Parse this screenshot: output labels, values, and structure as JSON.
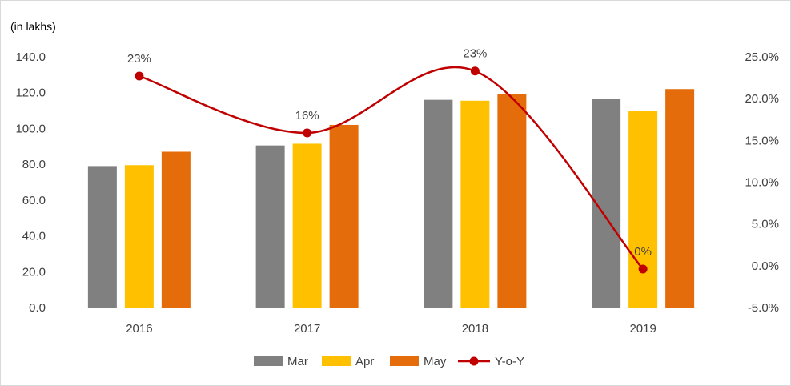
{
  "chart_data": {
    "type": "bar",
    "unit_label": "(in lakhs)",
    "categories": [
      "2016",
      "2017",
      "2018",
      "2019"
    ],
    "series": [
      {
        "name": "Mar",
        "kind": "bar",
        "axis": "left",
        "color": "#808080",
        "values": [
          79,
          90.5,
          116,
          116.5
        ]
      },
      {
        "name": "Apr",
        "kind": "bar",
        "axis": "left",
        "color": "#FFC000",
        "values": [
          79.5,
          91.5,
          115.5,
          110
        ]
      },
      {
        "name": "May",
        "kind": "bar",
        "axis": "left",
        "color": "#E46C0A",
        "values": [
          87,
          102,
          119,
          122
        ]
      },
      {
        "name": "Y-o-Y",
        "kind": "line",
        "axis": "right",
        "color": "#C00000",
        "smooth": true,
        "values": [
          22.7,
          15.9,
          23.3,
          -0.4
        ],
        "labels": [
          "23%",
          "16%",
          "23%",
          "0%"
        ]
      }
    ],
    "y_left": {
      "min": 0,
      "max": 140,
      "step": 20,
      "tick_labels": [
        "0.0",
        "20.0",
        "40.0",
        "60.0",
        "80.0",
        "100.0",
        "120.0",
        "140.0"
      ]
    },
    "y_right": {
      "min": -5,
      "max": 25,
      "step": 5,
      "tick_labels": [
        "-5.0%",
        "0.0%",
        "5.0%",
        "10.0%",
        "15.0%",
        "20.0%",
        "25.0%"
      ]
    },
    "grid": false,
    "legend_position": "bottom"
  }
}
